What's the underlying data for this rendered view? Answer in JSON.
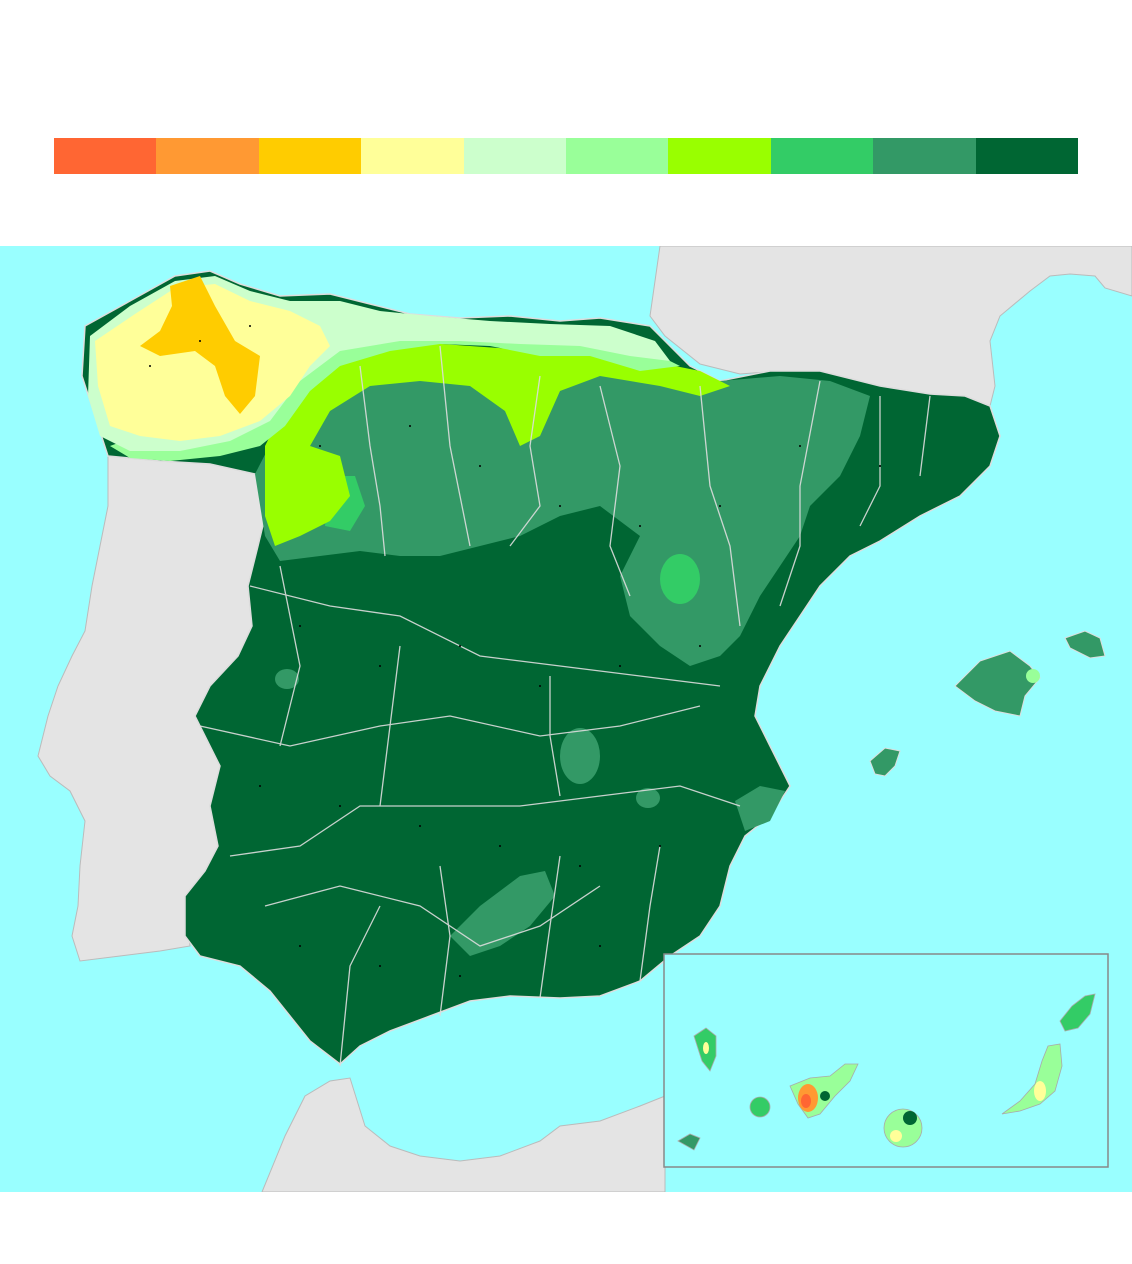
{
  "legend": {
    "colors": [
      "#ff6633",
      "#ff9933",
      "#ffcc00",
      "#ffff99",
      "#ccffcc",
      "#99ff99",
      "#99ff00",
      "#33cc66",
      "#339966",
      "#006633"
    ]
  },
  "map": {
    "colors": {
      "sea": "#99ffff",
      "land_outside": "#e4e4e4",
      "borders": "#dddddd",
      "inset_frame": "#888888",
      "station_dot": "#000000"
    }
  }
}
